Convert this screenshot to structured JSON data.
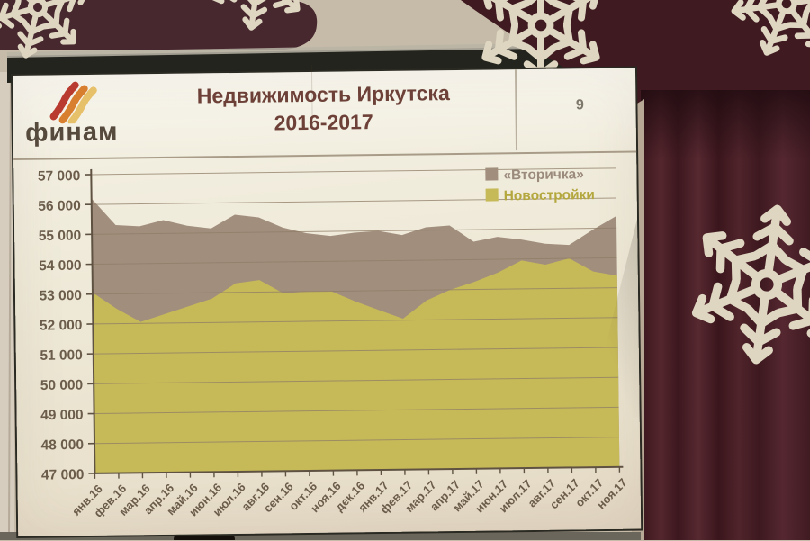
{
  "slide": {
    "logo_brand": "финам",
    "title_line1": "Недвижимость Иркутска",
    "title_line2": "2016-2017",
    "page_number": "9"
  },
  "chart_data": {
    "type": "area",
    "title": "Недвижимость Иркутска 2016-2017",
    "categories": [
      "янв.16",
      "фев.16",
      "мар.16",
      "апр.16",
      "май.16",
      "июн.16",
      "июл.16",
      "авг.16",
      "сен.16",
      "окт.16",
      "ноя.16",
      "дек.16",
      "янв.17",
      "фев.17",
      "мар.17",
      "апр.17",
      "май.17",
      "июн.17",
      "июл.17",
      "авг.17",
      "сен.17",
      "окт.17",
      "ноя.17"
    ],
    "series": [
      {
        "name": "«Вторичка»",
        "color": "#a28e7d",
        "label_color": "#9b8b7d",
        "values": [
          56200,
          55300,
          55250,
          55450,
          55250,
          55150,
          55600,
          55500,
          55150,
          54950,
          54850,
          54950,
          55000,
          54850,
          55100,
          55150,
          54600,
          54750,
          54650,
          54500,
          54450,
          54950,
          55400
        ]
      },
      {
        "name": "Новостройки",
        "color": "#c6ba58",
        "label_color": "#b3a73e",
        "values": [
          53050,
          52500,
          52050,
          52300,
          52550,
          52800,
          53300,
          53400,
          52950,
          53000,
          53000,
          52650,
          52350,
          52050,
          52650,
          53000,
          53250,
          53550,
          53950,
          53800,
          54000,
          53550,
          53400
        ]
      }
    ],
    "ylim": [
      47000,
      57000
    ],
    "ytick_step": 1000,
    "grid": true,
    "legend_position": "top-right",
    "xlabel": "",
    "ylabel": ""
  },
  "colors": {
    "grid": "#8f7d67",
    "axis": "#5f5242",
    "tick_text": "#6c5d4b",
    "curtain": "#451e25",
    "snowflake": "#ded6c1"
  }
}
